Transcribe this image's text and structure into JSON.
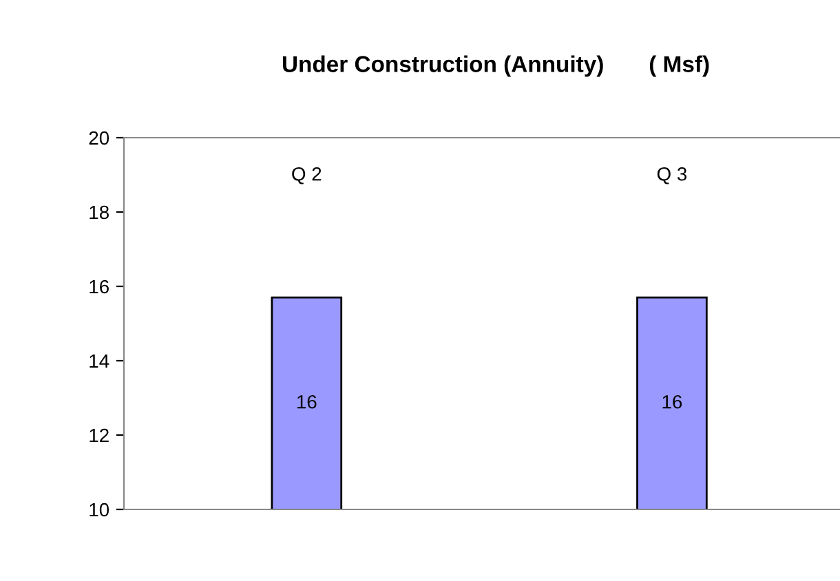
{
  "chart_data": {
    "type": "bar",
    "title": "Under Construction (Annuity)       ( Msf)",
    "categories": [
      "Q 2",
      "Q 3"
    ],
    "values": [
      15.7,
      15.7
    ],
    "value_labels": [
      "16",
      "16"
    ],
    "color": "#9999ff",
    "ylim": [
      10,
      20
    ],
    "yticks": [
      10,
      12,
      14,
      16,
      18,
      20
    ],
    "grid": false,
    "legend": false
  }
}
